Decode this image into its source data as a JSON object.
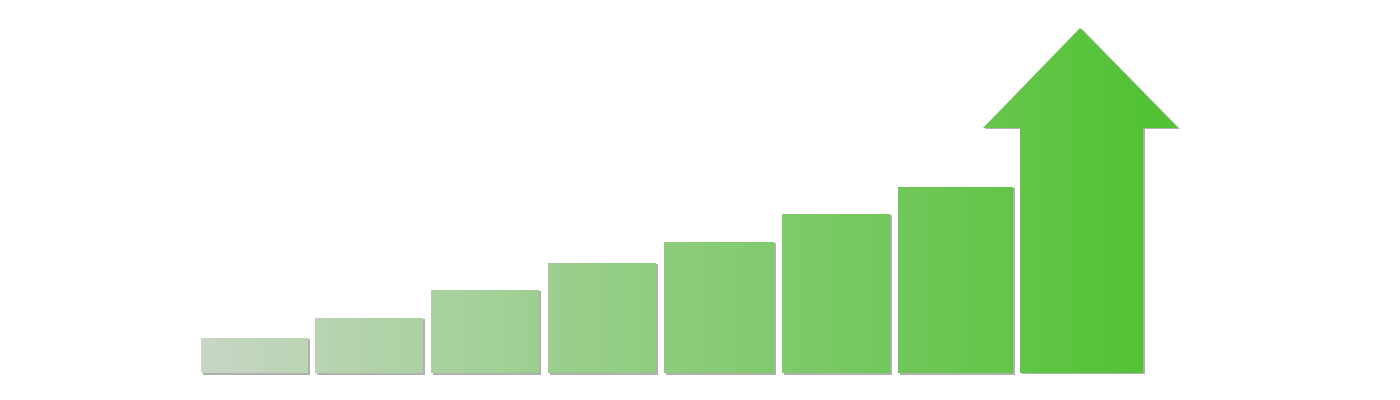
{
  "graphic": {
    "bars": [
      {
        "level": 0.1
      },
      {
        "level": 0.16
      },
      {
        "level": 0.24
      },
      {
        "level": 0.32
      },
      {
        "level": 0.38
      },
      {
        "level": 0.46
      },
      {
        "level": 0.54
      }
    ],
    "arrow": {
      "level": 1.0
    },
    "colors": {
      "start": "#c7d6c4",
      "end": "#52c234",
      "shadow": "#6f6f6f",
      "background": "#ffffff"
    }
  }
}
